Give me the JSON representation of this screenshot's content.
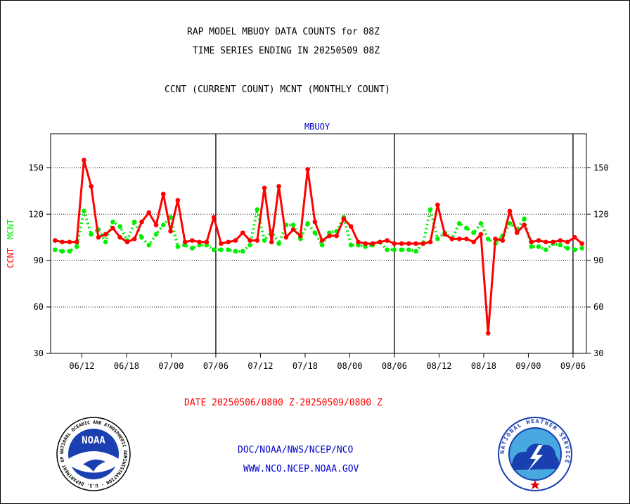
{
  "header": {
    "title_line1": "RAP MODEL MBUOY DATA COUNTS for 08Z",
    "title_line2": "TIME SERIES ENDING IN 20250509 08Z",
    "legend_line": "CCNT (CURRENT COUNT) MCNT (MONTHLY COUNT)"
  },
  "footer": {
    "date_range": "DATE 20250506/0800 Z-20250509/0800 Z",
    "org_path": "DOC/NOAA/NWS/NCEP/NCO",
    "website": "WWW.NCO.NCEP.NOAA.GOV"
  },
  "logos": {
    "noaa_text": "NOAA",
    "noaa_ring": "NATIONAL OCEANIC AND ATMOSPHERIC ADMINISTRATION · U.S. DEPARTMENT OF COMMERCE",
    "nws_ring": "NATIONAL WEATHER SERVICE"
  },
  "colors": {
    "ccnt": "#ff0000",
    "mcnt": "#00ee00",
    "series_title": "#0000cc",
    "footer_blue": "#0000cc",
    "date_red": "#ff0000",
    "grid": "#000000"
  },
  "chart_data": {
    "type": "line",
    "title": "MBUOY",
    "ylabel_parts": [
      {
        "text": "CCNT",
        "color": "#ff0000"
      },
      {
        "text": "MCNT",
        "color": "#00ee00"
      }
    ],
    "ylim": [
      30,
      172
    ],
    "y_ticks": [
      30,
      60,
      90,
      120,
      150
    ],
    "x_range": [
      0,
      120
    ],
    "x_ticks": [
      {
        "x": 7,
        "label": "06/12"
      },
      {
        "x": 17,
        "label": "06/18"
      },
      {
        "x": 27,
        "label": "07/00"
      },
      {
        "x": 37,
        "label": "07/06"
      },
      {
        "x": 47,
        "label": "07/12"
      },
      {
        "x": 57,
        "label": "07/18"
      },
      {
        "x": 67,
        "label": "08/00"
      },
      {
        "x": 77,
        "label": "08/06"
      },
      {
        "x": 87,
        "label": "08/12"
      },
      {
        "x": 97,
        "label": "08/18"
      },
      {
        "x": 107,
        "label": "09/00"
      },
      {
        "x": 117,
        "label": "09/06"
      }
    ],
    "day_boundaries": [
      37,
      77,
      117
    ],
    "grid": "horizontal dotted",
    "series": [
      {
        "name": "CCNT",
        "color": "#ff0000",
        "values": [
          103,
          102,
          102,
          102,
          155,
          138,
          105,
          107,
          111,
          105,
          102,
          104,
          115,
          121,
          113,
          133,
          109,
          129,
          102,
          103,
          102,
          102,
          118,
          101,
          102,
          103,
          108,
          103,
          103,
          137,
          102,
          138,
          105,
          110,
          106,
          149,
          115,
          103,
          106,
          106,
          117,
          112,
          102,
          101,
          101,
          102,
          103,
          101,
          101,
          101,
          101,
          101,
          102,
          126,
          107,
          104,
          104,
          104,
          102,
          107,
          43,
          104,
          103,
          122,
          108,
          113,
          102,
          103,
          102,
          102,
          103,
          102,
          105,
          101
        ]
      },
      {
        "name": "MCNT",
        "color": "#00ee00",
        "values": [
          97,
          96,
          96,
          99,
          122,
          107,
          110,
          102,
          115,
          112,
          103,
          115,
          105,
          100,
          107,
          113,
          118,
          99,
          100,
          98,
          100,
          100,
          97,
          97,
          97,
          96,
          96,
          100,
          123,
          103,
          109,
          101,
          113,
          113,
          104,
          114,
          108,
          100,
          108,
          109,
          118,
          100,
          100,
          99,
          100,
          102,
          97,
          97,
          97,
          97,
          96,
          101,
          123,
          104,
          108,
          104,
          114,
          111,
          108,
          114,
          104,
          101,
          106,
          114,
          110,
          117,
          99,
          99,
          97,
          101,
          100,
          98,
          97,
          98
        ]
      }
    ]
  }
}
